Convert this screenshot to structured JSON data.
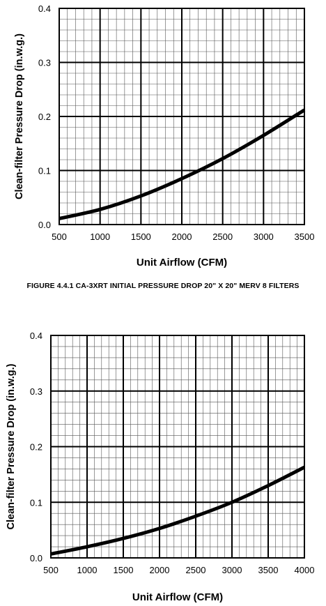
{
  "caption": "FIGURE 4.4.1 CA-3XRT INITIAL PRESSURE DROP 20\" X 20\" MERV 8 FILTERS",
  "chart_data": [
    {
      "type": "line",
      "xlabel": "Unit Airflow (CFM)",
      "ylabel": "Clean-filter Pressure Drop (in.w.g.)",
      "xlim": [
        500,
        3500
      ],
      "ylim": [
        0,
        0.4
      ],
      "x_ticks": [
        "500",
        "1000",
        "1500",
        "2000",
        "2500",
        "3000",
        "3500"
      ],
      "y_ticks": [
        "0.0",
        "0.1",
        "0.2",
        "0.3",
        "0.4"
      ],
      "grid": true,
      "series": [
        {
          "x": [
            500,
            1000,
            1500,
            2000,
            2500,
            3000,
            3500
          ],
          "y": [
            0.011,
            0.028,
            0.053,
            0.085,
            0.122,
            0.165,
            0.212
          ]
        }
      ]
    },
    {
      "type": "line",
      "xlabel": "Unit Airflow (CFM)",
      "ylabel": "Clean-filter Pressure Drop (in.w.g.)",
      "xlim": [
        500,
        4000
      ],
      "ylim": [
        0,
        0.4
      ],
      "x_ticks": [
        "500",
        "1000",
        "1500",
        "2000",
        "2500",
        "3000",
        "3500",
        "4000"
      ],
      "y_ticks": [
        "0.0",
        "0.1",
        "0.2",
        "0.3",
        "0.4"
      ],
      "grid": true,
      "series": [
        {
          "x": [
            500,
            1000,
            1500,
            2000,
            2500,
            3000,
            3500,
            4000
          ],
          "y": [
            0.007,
            0.02,
            0.035,
            0.053,
            0.075,
            0.1,
            0.13,
            0.163
          ]
        }
      ]
    }
  ]
}
